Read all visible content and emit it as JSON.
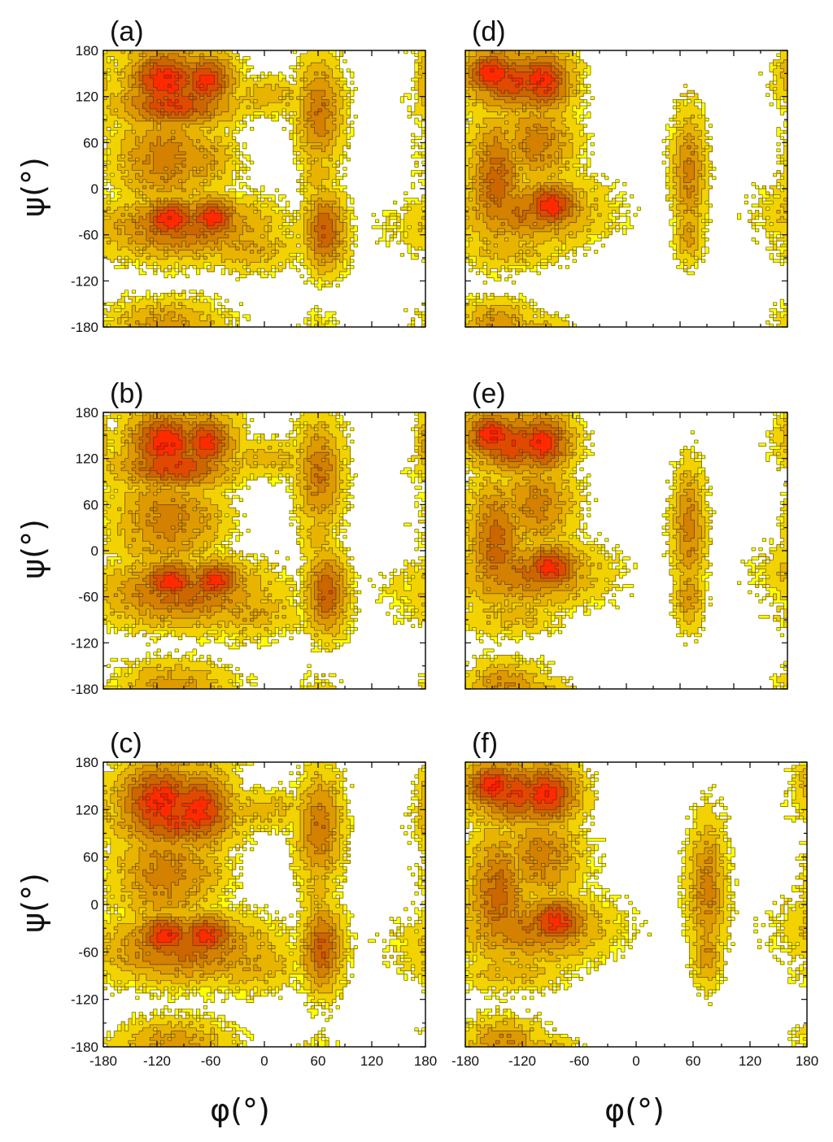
{
  "colors": {
    "background": "#ffffff",
    "frame": "#000000",
    "contour_line": "#3a2a10",
    "levels": [
      "#ffff00",
      "#f2d200",
      "#e8b400",
      "#de9a00",
      "#d48000",
      "#cc6600",
      "#e04a00",
      "#ff2a00",
      "#ff1a00"
    ]
  },
  "chart_data": {
    "type": "heatmap",
    "description": "Ramachandran free-energy contour maps, six panels",
    "xlabel": "φ(°)",
    "ylabel": "ψ(°)",
    "xlim": [
      -180,
      180
    ],
    "ylim": [
      -180,
      180
    ],
    "xticks": [
      -180,
      -120,
      -60,
      0,
      60,
      120,
      180
    ],
    "yticks": [
      180,
      120,
      60,
      0,
      -60,
      -120,
      -180
    ],
    "panels": [
      {
        "label": "(a)",
        "basins": [
          {
            "phi": -110,
            "psi": 140,
            "sx": 30,
            "sy": 30,
            "level": 8
          },
          {
            "phi": -65,
            "psi": 140,
            "sx": 22,
            "sy": 26,
            "level": 7.6
          },
          {
            "phi": -100,
            "psi": 110,
            "sx": 45,
            "sy": 22,
            "level": 7
          },
          {
            "phi": -105,
            "psi": -40,
            "sx": 24,
            "sy": 20,
            "level": 8
          },
          {
            "phi": -58,
            "psi": -38,
            "sx": 22,
            "sy": 20,
            "level": 7.6
          },
          {
            "phi": -90,
            "psi": -50,
            "sx": 65,
            "sy": 28,
            "level": 5.5
          },
          {
            "phi": -110,
            "psi": 40,
            "sx": 40,
            "sy": 48,
            "level": 4.5
          },
          {
            "phi": -75,
            "psi": 40,
            "sx": 30,
            "sy": 30,
            "level": 3.5
          },
          {
            "phi": -20,
            "psi": -75,
            "sx": 40,
            "sy": 22,
            "level": 3
          },
          {
            "phi": 68,
            "psi": -55,
            "sx": 16,
            "sy": 36,
            "level": 6
          },
          {
            "phi": 62,
            "psi": 100,
            "sx": 18,
            "sy": 50,
            "level": 4.8
          },
          {
            "phi": 0,
            "psi": 120,
            "sx": 40,
            "sy": 18,
            "level": 2.5
          },
          {
            "phi": 60,
            "psi": 20,
            "sx": 14,
            "sy": 40,
            "level": 2.5
          },
          {
            "phi": -110,
            "psi": -175,
            "sx": 45,
            "sy": 22,
            "level": 3.5
          },
          {
            "phi": 178,
            "psi": 140,
            "sx": 6,
            "sy": 30,
            "level": 3
          },
          {
            "phi": 178,
            "psi": -60,
            "sx": 5,
            "sy": 20,
            "level": 1.8
          }
        ]
      },
      {
        "label": "(b)",
        "basins": [
          {
            "phi": -110,
            "psi": 140,
            "sx": 30,
            "sy": 30,
            "level": 8
          },
          {
            "phi": -65,
            "psi": 140,
            "sx": 22,
            "sy": 26,
            "level": 7.6
          },
          {
            "phi": -100,
            "psi": 110,
            "sx": 45,
            "sy": 22,
            "level": 7
          },
          {
            "phi": -105,
            "psi": -40,
            "sx": 24,
            "sy": 20,
            "level": 7.8
          },
          {
            "phi": -55,
            "psi": -40,
            "sx": 22,
            "sy": 20,
            "level": 7.6
          },
          {
            "phi": -90,
            "psi": -55,
            "sx": 65,
            "sy": 30,
            "level": 5.5
          },
          {
            "phi": -110,
            "psi": 40,
            "sx": 40,
            "sy": 48,
            "level": 4.5
          },
          {
            "phi": -80,
            "psi": 40,
            "sx": 28,
            "sy": 30,
            "level": 3.5
          },
          {
            "phi": -20,
            "psi": -80,
            "sx": 40,
            "sy": 24,
            "level": 3
          },
          {
            "phi": 70,
            "psi": -55,
            "sx": 16,
            "sy": 38,
            "level": 6
          },
          {
            "phi": 62,
            "psi": 100,
            "sx": 18,
            "sy": 50,
            "level": 4.8
          },
          {
            "phi": 0,
            "psi": 120,
            "sx": 40,
            "sy": 18,
            "level": 2.5
          },
          {
            "phi": 60,
            "psi": 20,
            "sx": 14,
            "sy": 40,
            "level": 2.5
          },
          {
            "phi": -100,
            "psi": -175,
            "sx": 45,
            "sy": 22,
            "level": 3.5
          },
          {
            "phi": 178,
            "psi": 140,
            "sx": 6,
            "sy": 30,
            "level": 3
          },
          {
            "phi": 150,
            "psi": -45,
            "sx": 8,
            "sy": 15,
            "level": 1.8
          }
        ]
      },
      {
        "label": "(c)",
        "basins": [
          {
            "phi": -115,
            "psi": 130,
            "sx": 34,
            "sy": 34,
            "level": 8
          },
          {
            "phi": -75,
            "psi": 120,
            "sx": 28,
            "sy": 34,
            "level": 7.8
          },
          {
            "phi": -100,
            "psi": 105,
            "sx": 45,
            "sy": 24,
            "level": 7
          },
          {
            "phi": -110,
            "psi": -40,
            "sx": 24,
            "sy": 20,
            "level": 7.8
          },
          {
            "phi": -65,
            "psi": -40,
            "sx": 24,
            "sy": 20,
            "level": 7.6
          },
          {
            "phi": -90,
            "psi": -55,
            "sx": 65,
            "sy": 30,
            "level": 5.5
          },
          {
            "phi": -110,
            "psi": 40,
            "sx": 40,
            "sy": 48,
            "level": 4.5
          },
          {
            "phi": -80,
            "psi": 40,
            "sx": 28,
            "sy": 30,
            "level": 3.5
          },
          {
            "phi": -20,
            "psi": -75,
            "sx": 42,
            "sy": 24,
            "level": 3
          },
          {
            "phi": 65,
            "psi": -55,
            "sx": 16,
            "sy": 38,
            "level": 6
          },
          {
            "phi": 62,
            "psi": 95,
            "sx": 18,
            "sy": 50,
            "level": 4.8
          },
          {
            "phi": 0,
            "psi": 120,
            "sx": 40,
            "sy": 18,
            "level": 2.5
          },
          {
            "phi": 60,
            "psi": 20,
            "sx": 14,
            "sy": 40,
            "level": 2.5
          },
          {
            "phi": -100,
            "psi": -175,
            "sx": 45,
            "sy": 22,
            "level": 3.5
          },
          {
            "phi": 178,
            "psi": 120,
            "sx": 6,
            "sy": 40,
            "level": 2.5
          },
          {
            "phi": 178,
            "psi": -70,
            "sx": 5,
            "sy": 25,
            "level": 2.2
          }
        ]
      },
      {
        "label": "(d)",
        "basins": [
          {
            "phi": -150,
            "psi": 150,
            "sx": 22,
            "sy": 22,
            "level": 8
          },
          {
            "phi": -95,
            "psi": 140,
            "sx": 24,
            "sy": 28,
            "level": 7.8
          },
          {
            "phi": -125,
            "psi": 140,
            "sx": 35,
            "sy": 28,
            "level": 7
          },
          {
            "phi": -85,
            "psi": -22,
            "sx": 24,
            "sy": 22,
            "level": 7.8
          },
          {
            "phi": -145,
            "psi": 10,
            "sx": 22,
            "sy": 60,
            "level": 5.5
          },
          {
            "phi": -110,
            "psi": -30,
            "sx": 55,
            "sy": 30,
            "level": 5
          },
          {
            "phi": -100,
            "psi": 60,
            "sx": 30,
            "sy": 40,
            "level": 4.5
          },
          {
            "phi": -130,
            "psi": -80,
            "sx": 40,
            "sy": 18,
            "level": 2.5
          },
          {
            "phi": 70,
            "psi": 20,
            "sx": 13,
            "sy": 55,
            "level": 4.5
          },
          {
            "phi": 70,
            "psi": -60,
            "sx": 11,
            "sy": 25,
            "level": 3.5
          },
          {
            "phi": -145,
            "psi": -175,
            "sx": 28,
            "sy": 20,
            "level": 4
          },
          {
            "phi": 178,
            "psi": 140,
            "sx": 5,
            "sy": 22,
            "level": 2
          }
        ]
      },
      {
        "label": "(e)",
        "basins": [
          {
            "phi": -150,
            "psi": 150,
            "sx": 22,
            "sy": 22,
            "level": 8
          },
          {
            "phi": -95,
            "psi": 140,
            "sx": 24,
            "sy": 28,
            "level": 7.8
          },
          {
            "phi": -125,
            "psi": 140,
            "sx": 35,
            "sy": 28,
            "level": 7
          },
          {
            "phi": -85,
            "psi": -22,
            "sx": 24,
            "sy": 22,
            "level": 7.6
          },
          {
            "phi": -145,
            "psi": 10,
            "sx": 22,
            "sy": 60,
            "level": 5.5
          },
          {
            "phi": -110,
            "psi": -30,
            "sx": 55,
            "sy": 30,
            "level": 5
          },
          {
            "phi": -100,
            "psi": 60,
            "sx": 30,
            "sy": 40,
            "level": 4.5
          },
          {
            "phi": -130,
            "psi": -85,
            "sx": 40,
            "sy": 18,
            "level": 2.5
          },
          {
            "phi": 70,
            "psi": 30,
            "sx": 13,
            "sy": 55,
            "level": 4.5
          },
          {
            "phi": 70,
            "psi": -60,
            "sx": 11,
            "sy": 30,
            "level": 3.8
          },
          {
            "phi": -135,
            "psi": -175,
            "sx": 30,
            "sy": 22,
            "level": 4
          },
          {
            "phi": 178,
            "psi": 140,
            "sx": 5,
            "sy": 22,
            "level": 2
          }
        ]
      },
      {
        "label": "(f)",
        "basins": [
          {
            "phi": -150,
            "psi": 150,
            "sx": 22,
            "sy": 22,
            "level": 8
          },
          {
            "phi": -95,
            "psi": 140,
            "sx": 24,
            "sy": 28,
            "level": 7.8
          },
          {
            "phi": -125,
            "psi": 140,
            "sx": 35,
            "sy": 28,
            "level": 7
          },
          {
            "phi": -85,
            "psi": -22,
            "sx": 24,
            "sy": 22,
            "level": 7.6
          },
          {
            "phi": -145,
            "psi": 10,
            "sx": 22,
            "sy": 60,
            "level": 5.5
          },
          {
            "phi": -110,
            "psi": -30,
            "sx": 55,
            "sy": 30,
            "level": 5
          },
          {
            "phi": -100,
            "psi": 60,
            "sx": 30,
            "sy": 40,
            "level": 4.5
          },
          {
            "phi": -130,
            "psi": -85,
            "sx": 40,
            "sy": 18,
            "level": 2.5
          },
          {
            "phi": 75,
            "psi": 20,
            "sx": 14,
            "sy": 60,
            "level": 4.5
          },
          {
            "phi": 75,
            "psi": -60,
            "sx": 11,
            "sy": 30,
            "level": 3.8
          },
          {
            "phi": -140,
            "psi": -175,
            "sx": 28,
            "sy": 22,
            "level": 4
          },
          {
            "phi": 178,
            "psi": 140,
            "sx": 5,
            "sy": 22,
            "level": 2
          }
        ]
      }
    ]
  }
}
